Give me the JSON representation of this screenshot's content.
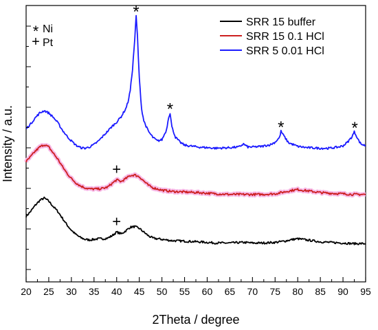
{
  "chart_data": {
    "type": "line",
    "xlabel": "2Theta / degree",
    "ylabel": "Intensity / a.u.",
    "xlim": [
      20,
      95
    ],
    "xticks": [
      "20",
      "25",
      "30",
      "35",
      "40",
      "45",
      "50",
      "55",
      "60",
      "65",
      "70",
      "75",
      "80",
      "85",
      "90",
      "95"
    ],
    "yticks_shown": false,
    "grid": false,
    "legend_position": "top-right",
    "series": [
      {
        "name": "SRR 15 buffer",
        "color": "#000000",
        "x": [
          20,
          21,
          22,
          23,
          24,
          25,
          26,
          27,
          28,
          29,
          30,
          31,
          32,
          33,
          34,
          35,
          36,
          37,
          38,
          39,
          40,
          41,
          42,
          43,
          44,
          45,
          46,
          47,
          48,
          50,
          52,
          55,
          58,
          60,
          62,
          65,
          68,
          70,
          72,
          75,
          77,
          79,
          80,
          81,
          83,
          85,
          87,
          90,
          92,
          95
        ],
        "y": [
          0.48,
          0.56,
          0.66,
          0.74,
          0.78,
          0.73,
          0.64,
          0.56,
          0.45,
          0.34,
          0.25,
          0.18,
          0.13,
          0.1,
          0.09,
          0.1,
          0.11,
          0.11,
          0.12,
          0.16,
          0.22,
          0.19,
          0.24,
          0.3,
          0.31,
          0.28,
          0.22,
          0.16,
          0.12,
          0.1,
          0.08,
          0.07,
          0.06,
          0.05,
          0.04,
          0.04,
          0.05,
          0.04,
          0.04,
          0.05,
          0.07,
          0.1,
          0.11,
          0.1,
          0.08,
          0.06,
          0.05,
          0.04,
          0.03,
          0.03
        ]
      },
      {
        "name": "SRR 15 0.1 HCl",
        "color": "#cc1e1e",
        "x": [
          20,
          21,
          22,
          23,
          24,
          25,
          26,
          27,
          28,
          29,
          30,
          31,
          32,
          33,
          34,
          35,
          36,
          37,
          38,
          39,
          40,
          41,
          42,
          43,
          44,
          45,
          46,
          47,
          48,
          50,
          52,
          55,
          58,
          60,
          62,
          65,
          68,
          70,
          72,
          75,
          77,
          79,
          80,
          81,
          83,
          85,
          87,
          90,
          92,
          95
        ],
        "y": [
          1.38,
          1.46,
          1.55,
          1.62,
          1.66,
          1.62,
          1.52,
          1.42,
          1.3,
          1.19,
          1.1,
          1.03,
          0.98,
          0.95,
          0.93,
          0.93,
          0.93,
          0.94,
          0.96,
          1.02,
          1.08,
          1.05,
          1.1,
          1.15,
          1.16,
          1.13,
          1.06,
          0.99,
          0.95,
          0.91,
          0.89,
          0.88,
          0.87,
          0.86,
          0.85,
          0.84,
          0.84,
          0.84,
          0.84,
          0.85,
          0.88,
          0.91,
          0.92,
          0.91,
          0.89,
          0.87,
          0.86,
          0.85,
          0.84,
          0.84
        ]
      },
      {
        "name": "SRR 5 0.01 HCl",
        "color": "#1a1aff",
        "x": [
          20,
          21,
          22,
          23,
          24,
          25,
          26,
          27,
          28,
          29,
          30,
          31,
          32,
          33,
          34,
          35,
          36,
          37,
          38,
          39,
          40,
          41,
          42,
          42.5,
          43,
          43.5,
          44,
          44.3,
          44.6,
          45,
          45.5,
          46,
          47,
          48,
          49,
          50,
          51,
          51.5,
          51.8,
          52.2,
          53,
          54,
          55,
          58,
          60,
          62,
          65,
          67,
          68,
          69,
          70,
          72,
          74,
          75,
          76,
          76.3,
          76.8,
          77.5,
          78,
          80,
          82,
          85,
          87,
          89,
          90,
          91,
          92,
          92.5,
          93,
          93.5,
          94,
          95
        ],
        "y": [
          1.92,
          2.0,
          2.1,
          2.18,
          2.22,
          2.18,
          2.11,
          2.02,
          1.9,
          1.8,
          1.72,
          1.65,
          1.61,
          1.6,
          1.62,
          1.66,
          1.72,
          1.8,
          1.88,
          1.96,
          2.03,
          2.12,
          2.25,
          2.36,
          2.55,
          2.9,
          3.4,
          3.78,
          3.45,
          2.75,
          2.25,
          2.05,
          1.88,
          1.78,
          1.72,
          1.74,
          1.9,
          2.12,
          2.18,
          1.95,
          1.78,
          1.7,
          1.65,
          1.62,
          1.61,
          1.6,
          1.61,
          1.62,
          1.67,
          1.62,
          1.62,
          1.63,
          1.66,
          1.7,
          1.78,
          1.88,
          1.82,
          1.74,
          1.69,
          1.63,
          1.61,
          1.6,
          1.6,
          1.62,
          1.64,
          1.7,
          1.79,
          1.87,
          1.8,
          1.72,
          1.67,
          1.64
        ]
      }
    ],
    "annotations": [
      {
        "text": "*",
        "x": 44.3,
        "y": 3.78
      },
      {
        "text": "*",
        "x": 51.8,
        "y": 2.18
      },
      {
        "text": "*",
        "x": 76.3,
        "y": 1.88
      },
      {
        "text": "*",
        "x": 92.6,
        "y": 1.87
      },
      {
        "text": "+",
        "x": 40.0,
        "y": 1.08
      },
      {
        "text": "+",
        "x": 40.0,
        "y": 0.22
      }
    ],
    "marker_legend": [
      {
        "symbol": "*",
        "label": "Ni"
      },
      {
        "symbol": "+",
        "label": "Pt"
      }
    ]
  }
}
